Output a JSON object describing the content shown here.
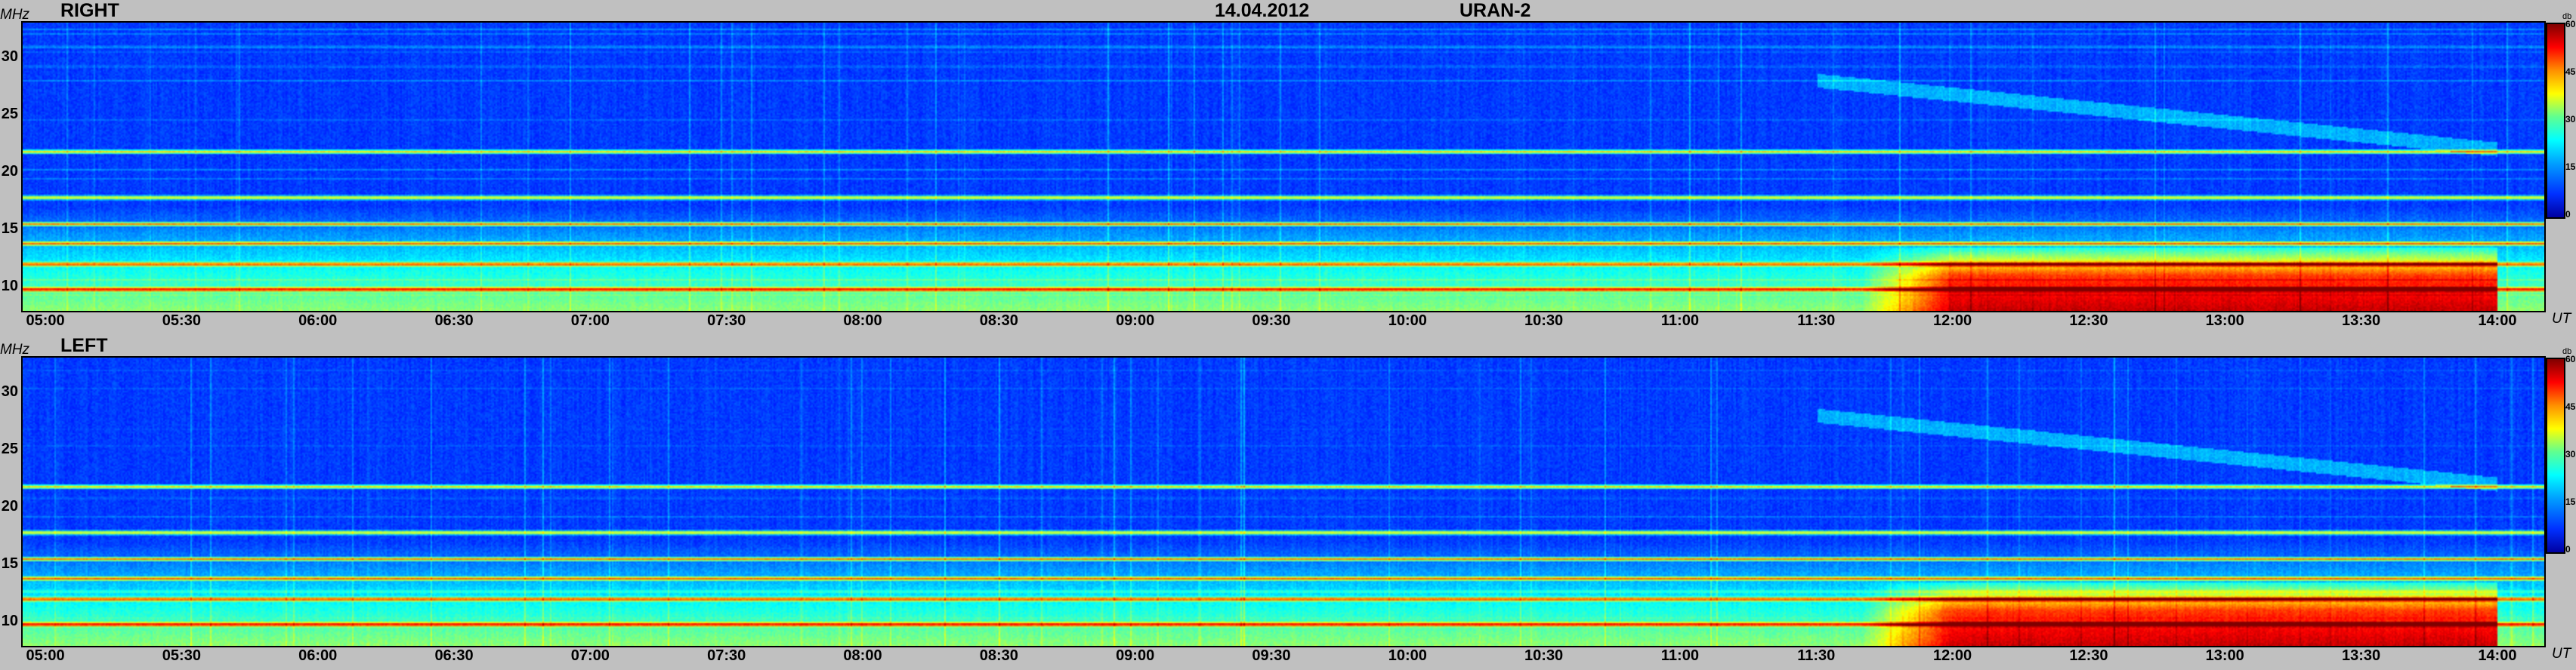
{
  "date": "14.04.2012",
  "instrument": "URAN-2",
  "y_unit": "MHz",
  "x_unit": "UT",
  "colorbar_unit": "db",
  "colorbar_ticks": [
    "0",
    "15",
    "30",
    "45",
    "60"
  ],
  "panels": [
    {
      "title": "RIGHT"
    },
    {
      "title": "LEFT"
    }
  ],
  "chart_data": [
    {
      "type": "heatmap",
      "title": "RIGHT",
      "xlabel": "UT",
      "ylabel": "MHz",
      "x_ticks": [
        "05:00",
        "05:30",
        "06:00",
        "06:30",
        "07:00",
        "07:30",
        "08:00",
        "08:30",
        "09:00",
        "09:30",
        "10:00",
        "10:30",
        "11:00",
        "11:30",
        "12:00",
        "12:30",
        "13:00",
        "13:30",
        "14:00"
      ],
      "y_ticks": [
        "10",
        "15",
        "20",
        "25",
        "30"
      ],
      "xlim": [
        "04:55",
        "14:10"
      ],
      "ylim": [
        8,
        33
      ],
      "colorbar": {
        "label": "db",
        "range": [
          0,
          60
        ],
        "colormap": "jet"
      },
      "features": {
        "background_level_db": 8,
        "rfi_lines_mhz": [
          9.8,
          12.0,
          13.8,
          15.5,
          17.8,
          21.8
        ],
        "enhanced_emission": {
          "start": "12:00",
          "end": "14:00",
          "f_low": 8,
          "f_high": 13.5,
          "level_db": 45
        },
        "drifting_feature": {
          "start": "11:30",
          "end": "14:00",
          "f_start": 28,
          "f_end": 22
        }
      }
    },
    {
      "type": "heatmap",
      "title": "LEFT",
      "xlabel": "UT",
      "ylabel": "MHz",
      "x_ticks": [
        "05:00",
        "05:30",
        "06:00",
        "06:30",
        "07:00",
        "07:30",
        "08:00",
        "08:30",
        "09:00",
        "09:30",
        "10:00",
        "10:30",
        "11:00",
        "11:30",
        "12:00",
        "12:30",
        "13:00",
        "13:30",
        "14:00"
      ],
      "y_ticks": [
        "10",
        "15",
        "20",
        "25",
        "30"
      ],
      "xlim": [
        "04:55",
        "14:10"
      ],
      "ylim": [
        8,
        33
      ],
      "colorbar": {
        "label": "db",
        "range": [
          0,
          60
        ],
        "colormap": "jet"
      },
      "features": {
        "background_level_db": 8,
        "rfi_lines_mhz": [
          9.8,
          12.0,
          13.8,
          15.5,
          17.8,
          21.8
        ],
        "enhanced_emission": {
          "start": "12:00",
          "end": "14:00",
          "f_low": 8,
          "f_high": 13.5,
          "level_db": 45
        },
        "drifting_feature": {
          "start": "11:30",
          "end": "14:00",
          "f_start": 28,
          "f_end": 22
        }
      }
    }
  ]
}
